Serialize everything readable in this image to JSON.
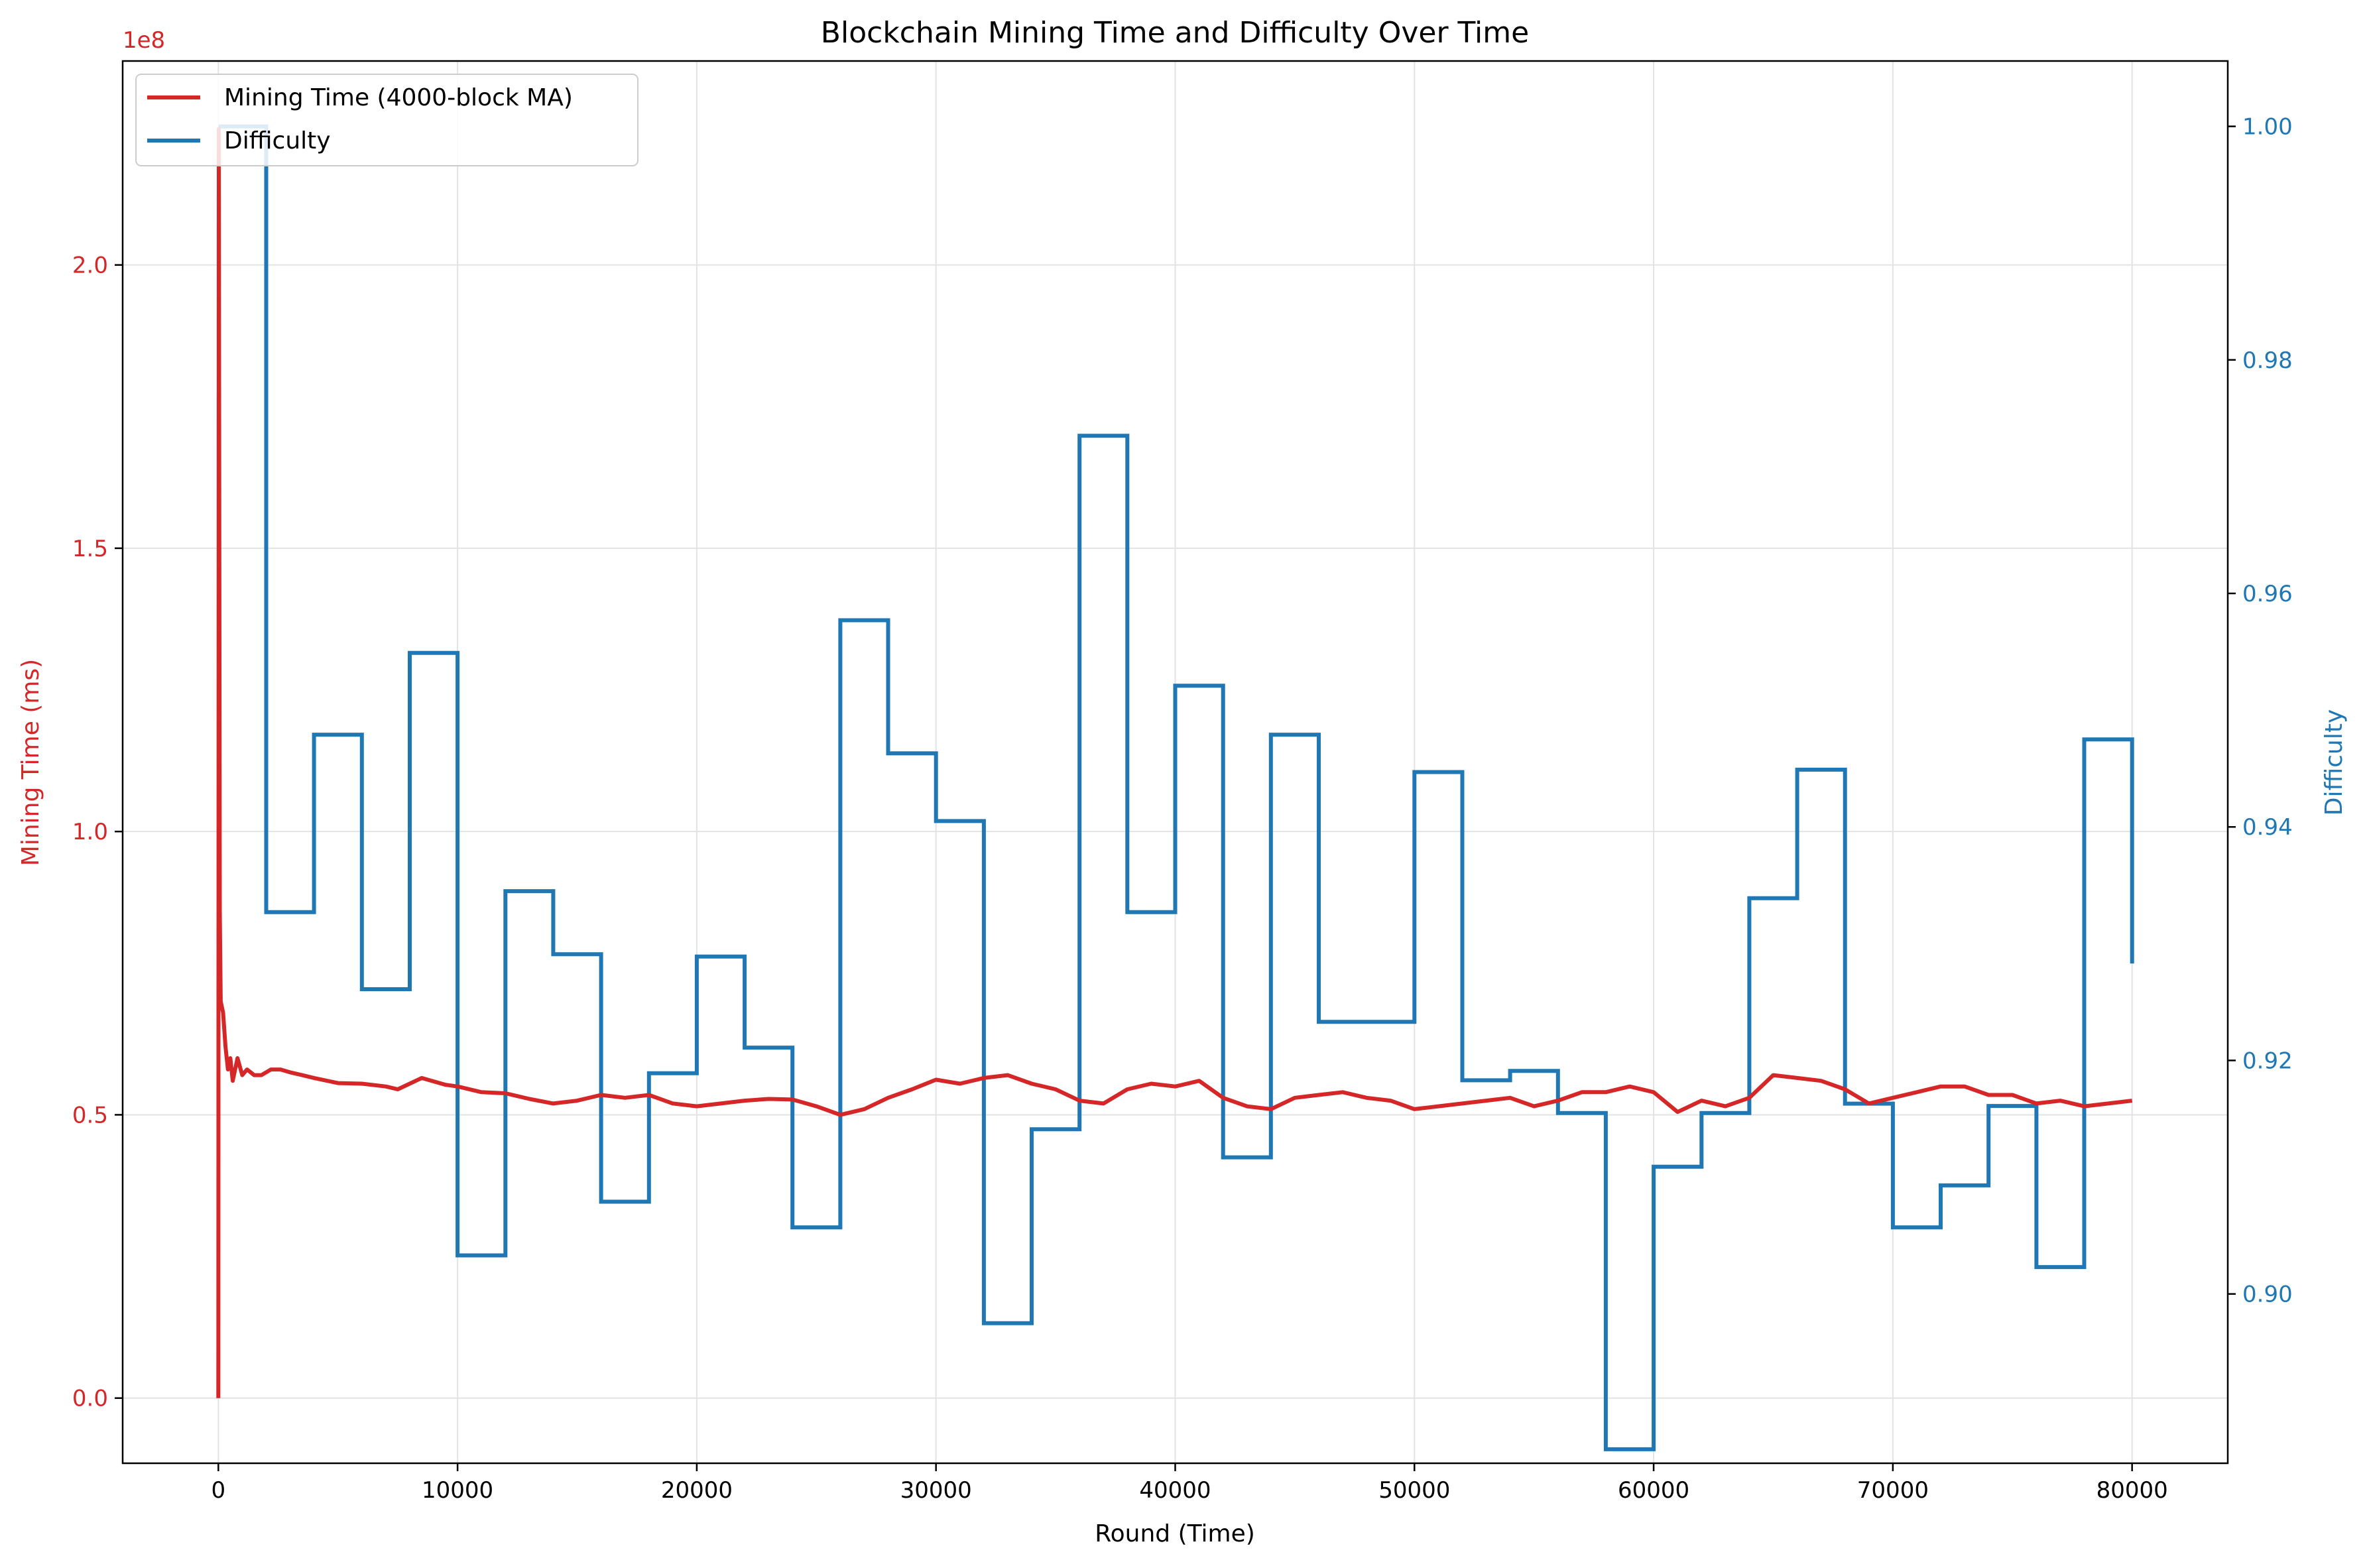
{
  "chart_data": {
    "type": "line",
    "title": "Blockchain Mining Time and Difficulty Over Time",
    "xlabel": "Round (Time)",
    "ylabel_left": "Mining Time (ms)",
    "ylabel_right": "Difficulty",
    "left_axis_offset_label": "1e8",
    "xlim": [
      -4000,
      84000
    ],
    "ylim_left": [
      -11500000,
      236000000
    ],
    "ylim_right": [
      0.8855,
      1.0056
    ],
    "x_ticks": [
      0,
      10000,
      20000,
      30000,
      40000,
      50000,
      60000,
      70000,
      80000
    ],
    "x_tick_labels": [
      "0",
      "10000",
      "20000",
      "30000",
      "40000",
      "50000",
      "60000",
      "70000",
      "80000"
    ],
    "y_left_ticks": [
      0,
      0.5,
      1.0,
      1.5,
      2.0
    ],
    "y_left_tick_labels": [
      "0.0",
      "0.5",
      "1.0",
      "1.5",
      "2.0"
    ],
    "y_right_ticks": [
      0.9,
      0.92,
      0.94,
      0.96,
      0.98,
      1.0
    ],
    "y_right_tick_labels": [
      "0.90",
      "0.92",
      "0.94",
      "0.96",
      "0.98",
      "1.00"
    ],
    "grid": true,
    "legend_position": "top-left",
    "colors": {
      "mining": "#d62728",
      "difficulty": "#1f77b4",
      "left_axis": "#d62728",
      "right_axis": "#1f77b4"
    },
    "series": [
      {
        "name": "Mining Time (4000-block MA)",
        "axis": "left",
        "units_note": "values in units of 1e8 ms",
        "points": [
          [
            0,
            0.0
          ],
          [
            20,
            2.24
          ],
          [
            60,
            0.86
          ],
          [
            100,
            0.7
          ],
          [
            200,
            0.68
          ],
          [
            300,
            0.62
          ],
          [
            400,
            0.58
          ],
          [
            500,
            0.6
          ],
          [
            600,
            0.56
          ],
          [
            800,
            0.6
          ],
          [
            1000,
            0.57
          ],
          [
            1200,
            0.58
          ],
          [
            1500,
            0.57
          ],
          [
            1800,
            0.57
          ],
          [
            2200,
            0.58
          ],
          [
            2600,
            0.58
          ],
          [
            3000,
            0.575
          ],
          [
            3500,
            0.57
          ],
          [
            4000,
            0.565
          ],
          [
            5000,
            0.556
          ],
          [
            6000,
            0.555
          ],
          [
            7000,
            0.55
          ],
          [
            7500,
            0.545
          ],
          [
            8500,
            0.565
          ],
          [
            9500,
            0.553
          ],
          [
            10000,
            0.55
          ],
          [
            11000,
            0.54
          ],
          [
            12000,
            0.538
          ],
          [
            13000,
            0.528
          ],
          [
            14000,
            0.52
          ],
          [
            15000,
            0.525
          ],
          [
            16000,
            0.535
          ],
          [
            17000,
            0.53
          ],
          [
            18000,
            0.535
          ],
          [
            19000,
            0.52
          ],
          [
            20000,
            0.515
          ],
          [
            21000,
            0.52
          ],
          [
            22000,
            0.525
          ],
          [
            23000,
            0.528
          ],
          [
            24000,
            0.527
          ],
          [
            25000,
            0.515
          ],
          [
            26000,
            0.5
          ],
          [
            27000,
            0.51
          ],
          [
            28000,
            0.53
          ],
          [
            29000,
            0.545
          ],
          [
            30000,
            0.562
          ],
          [
            31000,
            0.555
          ],
          [
            32000,
            0.565
          ],
          [
            33000,
            0.57
          ],
          [
            34000,
            0.555
          ],
          [
            35000,
            0.545
          ],
          [
            36000,
            0.525
          ],
          [
            37000,
            0.52
          ],
          [
            38000,
            0.545
          ],
          [
            39000,
            0.555
          ],
          [
            40000,
            0.55
          ],
          [
            41000,
            0.56
          ],
          [
            42000,
            0.53
          ],
          [
            43000,
            0.515
          ],
          [
            44000,
            0.51
          ],
          [
            45000,
            0.53
          ],
          [
            46000,
            0.535
          ],
          [
            47000,
            0.54
          ],
          [
            48000,
            0.53
          ],
          [
            49000,
            0.525
          ],
          [
            50000,
            0.51
          ],
          [
            51000,
            0.515
          ],
          [
            52000,
            0.52
          ],
          [
            53000,
            0.525
          ],
          [
            54000,
            0.53
          ],
          [
            55000,
            0.515
          ],
          [
            56000,
            0.525
          ],
          [
            57000,
            0.54
          ],
          [
            58000,
            0.54
          ],
          [
            59000,
            0.55
          ],
          [
            60000,
            0.54
          ],
          [
            61000,
            0.505
          ],
          [
            62000,
            0.525
          ],
          [
            63000,
            0.515
          ],
          [
            64000,
            0.53
          ],
          [
            65000,
            0.57
          ],
          [
            66000,
            0.565
          ],
          [
            67000,
            0.56
          ],
          [
            68000,
            0.545
          ],
          [
            69000,
            0.52
          ],
          [
            70000,
            0.53
          ],
          [
            71000,
            0.54
          ],
          [
            72000,
            0.55
          ],
          [
            73000,
            0.55
          ],
          [
            74000,
            0.535
          ],
          [
            75000,
            0.535
          ],
          [
            76000,
            0.52
          ],
          [
            77000,
            0.525
          ],
          [
            78000,
            0.515
          ],
          [
            79000,
            0.52
          ],
          [
            80000,
            0.525
          ]
        ]
      },
      {
        "name": "Difficulty",
        "axis": "right",
        "step": "post",
        "x_steps": [
          0,
          2000,
          4000,
          6000,
          8000,
          10000,
          12000,
          14000,
          16000,
          18000,
          20000,
          22000,
          24000,
          26000,
          28000,
          30000,
          32000,
          34000,
          36000,
          38000,
          40000,
          42000,
          44000,
          46000,
          50000,
          52000,
          54000,
          56000,
          58000,
          60000,
          62000,
          64000,
          66000,
          68000,
          70000,
          72000,
          74000,
          76000,
          78000
        ],
        "values": [
          1.0,
          0.9327,
          0.9479,
          0.9261,
          0.9549,
          0.9033,
          0.9345,
          0.9291,
          0.9079,
          0.9189,
          0.9289,
          0.9211,
          0.9057,
          0.9577,
          0.9463,
          0.9405,
          0.8975,
          0.9141,
          0.9735,
          0.9327,
          0.9521,
          0.9117,
          0.9479,
          0.9233,
          0.9447,
          0.9183,
          0.9191,
          0.9155,
          0.8867,
          0.9109,
          0.9155,
          0.9339,
          0.9449,
          0.9163,
          0.9057,
          0.9093,
          0.9161,
          0.9023,
          0.9475
        ],
        "end": [
          80000,
          0.9283
        ]
      }
    ]
  }
}
